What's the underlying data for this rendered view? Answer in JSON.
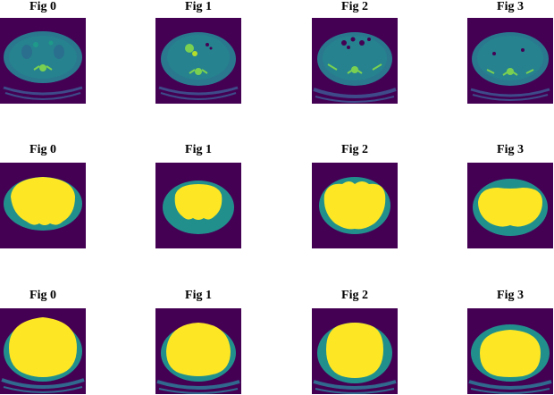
{
  "rows": [
    {
      "kind": "ct-slice",
      "panels": [
        {
          "title": "Fig 0"
        },
        {
          "title": "Fig 1"
        },
        {
          "title": "Fig 2"
        },
        {
          "title": "Fig 3"
        }
      ]
    },
    {
      "kind": "segmentation-mask",
      "panels": [
        {
          "title": "Fig 0"
        },
        {
          "title": "Fig 1"
        },
        {
          "title": "Fig 2"
        },
        {
          "title": "Fig 3"
        }
      ]
    },
    {
      "kind": "smoothed-mask",
      "panels": [
        {
          "title": "Fig 0"
        },
        {
          "title": "Fig 1"
        },
        {
          "title": "Fig 2"
        },
        {
          "title": "Fig 3"
        }
      ]
    }
  ],
  "colors": {
    "background": "#440154",
    "body_teal": "#2a788e",
    "body_dark": "#31688e",
    "mask_teal": "#21908d",
    "mask_yellow": "#fde725",
    "bone_green": "#7ad151",
    "table_gray": "#3e4a89"
  }
}
